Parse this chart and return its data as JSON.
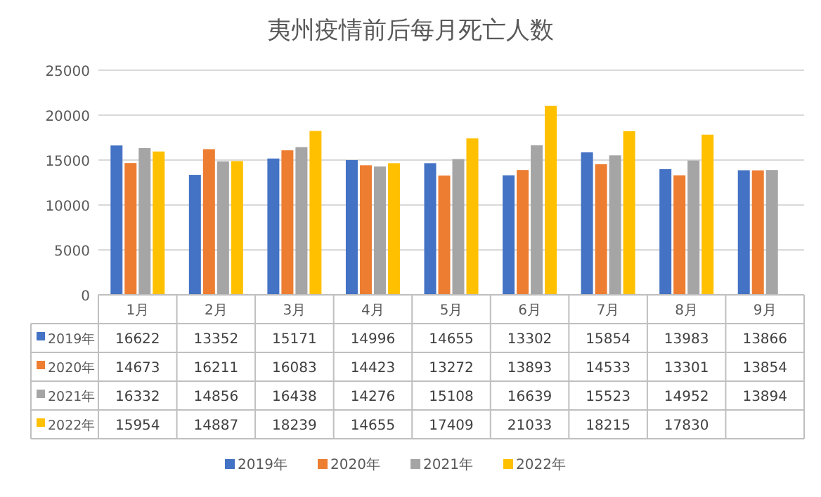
{
  "chart_data": {
    "type": "bar",
    "title": "夷州疫情前后每月死亡人数",
    "categories": [
      "1月",
      "2月",
      "3月",
      "4月",
      "5月",
      "6月",
      "7月",
      "8月",
      "9月"
    ],
    "series": [
      {
        "name": "2019年",
        "color": "#4472c4",
        "values": [
          16622,
          13352,
          15171,
          14996,
          14655,
          13302,
          15854,
          13983,
          13866
        ]
      },
      {
        "name": "2020年",
        "color": "#ed7d31",
        "values": [
          14673,
          16211,
          16083,
          14423,
          13272,
          13893,
          14533,
          13301,
          13854
        ]
      },
      {
        "name": "2021年",
        "color": "#a5a5a5",
        "values": [
          16332,
          14856,
          16438,
          14276,
          15108,
          16639,
          15523,
          14952,
          13894
        ]
      },
      {
        "name": "2022年",
        "color": "#ffc000",
        "values": [
          15954,
          14887,
          18239,
          14655,
          17409,
          21033,
          18215,
          17830,
          null
        ]
      }
    ],
    "ylim": [
      0,
      25000
    ],
    "yticks": [
      0,
      5000,
      10000,
      15000,
      20000,
      25000
    ],
    "grid": "y",
    "legend": "bottom",
    "data_labels": true
  }
}
